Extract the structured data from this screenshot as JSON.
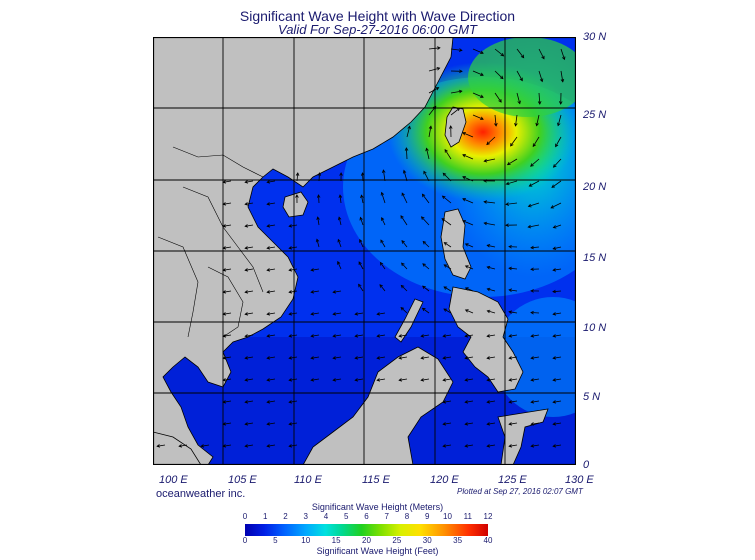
{
  "title": "Significant Wave Height with Wave Direction",
  "subtitle": "Valid For Sep-27-2016 06:00 GMT",
  "lat_labels": [
    "30 N",
    "25 N",
    "20 N",
    "15 N",
    "10 N",
    "5 N",
    "0"
  ],
  "lon_labels": [
    "100 E",
    "105 E",
    "110 E",
    "115 E",
    "120 E",
    "125 E",
    "130 E"
  ],
  "brand": "oceanweather inc.",
  "plotted": "Plotted at Sep 27, 2016 02:07 GMT",
  "colorbar": {
    "title_meters": "Significant Wave Height (Meters)",
    "title_feet": "Significant Wave Height (Feet)",
    "meters_ticks": [
      "0",
      "1",
      "2",
      "3",
      "4",
      "5",
      "6",
      "7",
      "8",
      "9",
      "10",
      "11",
      "12"
    ],
    "feet_ticks": [
      "0",
      "5",
      "10",
      "15",
      "20",
      "25",
      "30",
      "35",
      "40"
    ]
  },
  "colors": {
    "land": "#c0c0c0",
    "ocean_low": "#0020e6",
    "ocean_mid": "#00a8ff",
    "typhoon_core": "#ff3000",
    "text": "#1a1a6e"
  }
}
